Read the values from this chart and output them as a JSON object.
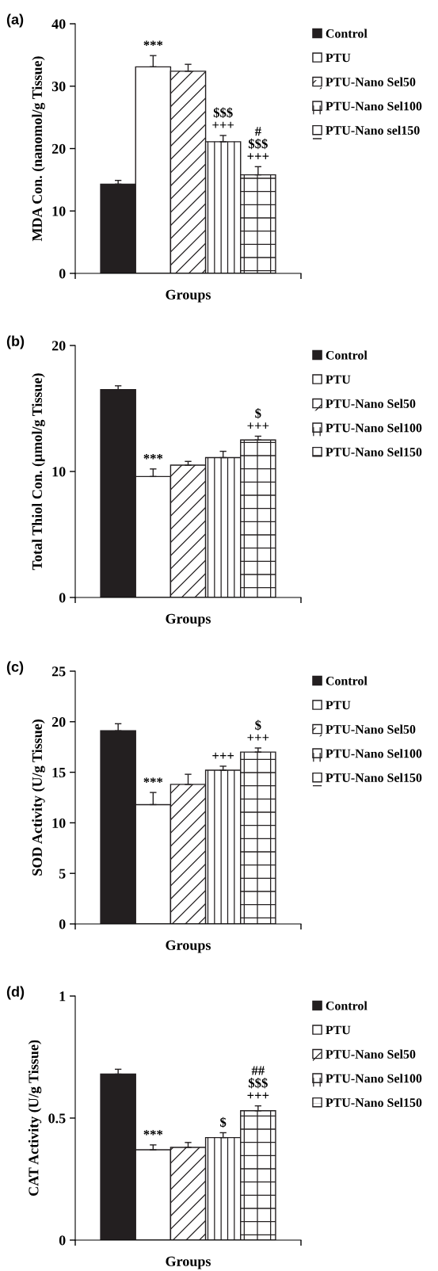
{
  "chart_data": [
    {
      "type": "bar",
      "title": "(a)",
      "xlabel": "Groups",
      "ylabel": "MDA Con. (nanomol/g Tissue)",
      "categories": [
        null
      ],
      "ylim": [
        0,
        40
      ],
      "yticks": [
        0,
        10,
        20,
        30,
        40
      ],
      "legend": "right",
      "series": [
        {
          "name": "Control",
          "color": "#231f20",
          "values": [
            14.3
          ],
          "errors": [
            [
              14.3,
              14.9
            ]
          ],
          "value_labels": [
            null
          ]
        },
        {
          "name": "PTU",
          "color": "#ffffff",
          "values": [
            33.1
          ],
          "errors": [
            [
              33.1,
              34.9
            ]
          ],
          "value_labels": [
            "***"
          ]
        },
        {
          "name": "PTU-Nano Sel50",
          "color": "#ffffff",
          "values": [
            32.4
          ],
          "errors": [
            [
              32.4,
              33.5
            ]
          ],
          "value_labels": [
            null
          ]
        },
        {
          "name": "PTU-Nano Sel100",
          "color": "#ffffff",
          "values": [
            21.1
          ],
          "errors": [
            [
              21.1,
              22.1
            ]
          ],
          "value_labels": [
            "$$$\n+++"
          ]
        },
        {
          "name": "PTU-Nano sel150",
          "color": "#ffffff",
          "values": [
            15.8
          ],
          "errors": [
            [
              15.8,
              17.1
            ]
          ],
          "value_labels": [
            "#\n$$$\n+++"
          ]
        }
      ]
    },
    {
      "type": "bar",
      "title": "(b)",
      "xlabel": "Groups",
      "ylabel": "Total Thiol Con. (µmol/g Tissue)",
      "categories": [
        null
      ],
      "ylim": [
        0,
        20
      ],
      "yticks": [
        0,
        10,
        20
      ],
      "legend": "right",
      "series": [
        {
          "name": "Control",
          "color": "#231f20",
          "values": [
            16.5
          ],
          "errors": [
            [
              16.5,
              16.8
            ]
          ],
          "value_labels": [
            null
          ]
        },
        {
          "name": "PTU",
          "color": "#ffffff",
          "values": [
            9.6
          ],
          "errors": [
            [
              9.6,
              10.2
            ]
          ],
          "value_labels": [
            "***"
          ]
        },
        {
          "name": "PTU-Nano Sel50",
          "color": "#ffffff",
          "values": [
            10.5
          ],
          "errors": [
            [
              10.5,
              10.8
            ]
          ],
          "value_labels": [
            null
          ]
        },
        {
          "name": "PTU-Nano Sel100",
          "color": "#ffffff",
          "values": [
            11.1
          ],
          "errors": [
            [
              11.1,
              11.6
            ]
          ],
          "value_labels": [
            null
          ]
        },
        {
          "name": "PTU-Nano Sel150",
          "color": "#ffffff",
          "values": [
            12.5
          ],
          "errors": [
            [
              12.5,
              12.8
            ]
          ],
          "value_labels": [
            "$\n+++"
          ]
        }
      ]
    },
    {
      "type": "bar",
      "title": "(c)",
      "xlabel": "Groups",
      "ylabel": "SOD Activity (U/g Tissue)",
      "categories": [
        null
      ],
      "ylim": [
        0,
        25
      ],
      "yticks": [
        0,
        5,
        10,
        15,
        20,
        25
      ],
      "legend": "right",
      "series": [
        {
          "name": "Control",
          "color": "#231f20",
          "values": [
            19.1
          ],
          "errors": [
            [
              19.1,
              19.8
            ]
          ],
          "value_labels": [
            null
          ]
        },
        {
          "name": "PTU",
          "color": "#ffffff",
          "values": [
            11.8
          ],
          "errors": [
            [
              11.8,
              13.0
            ]
          ],
          "value_labels": [
            "***"
          ]
        },
        {
          "name": "PTU-Nano Sel50",
          "color": "#ffffff",
          "values": [
            13.8
          ],
          "errors": [
            [
              13.8,
              14.8
            ]
          ],
          "value_labels": [
            null
          ]
        },
        {
          "name": "PTU-Nano Sel100",
          "color": "#ffffff",
          "values": [
            15.2
          ],
          "errors": [
            [
              15.2,
              15.6
            ]
          ],
          "value_labels": [
            "+++"
          ]
        },
        {
          "name": "PTU-Nano Sel150",
          "color": "#ffffff",
          "values": [
            17.0
          ],
          "errors": [
            [
              17.0,
              17.4
            ]
          ],
          "value_labels": [
            "$\n+++"
          ]
        }
      ]
    },
    {
      "type": "bar",
      "title": "(d)",
      "xlabel": "Groups",
      "ylabel": "CAT Activity (U/g Tissue)",
      "categories": [
        null
      ],
      "ylim": [
        0,
        1
      ],
      "yticks": [
        0,
        0.5,
        1
      ],
      "legend": "right",
      "series": [
        {
          "name": "Control",
          "color": "#231f20",
          "values": [
            0.68
          ],
          "errors": [
            [
              0.68,
              0.7
            ]
          ],
          "value_labels": [
            null
          ]
        },
        {
          "name": "PTU",
          "color": "#ffffff",
          "values": [
            0.37
          ],
          "errors": [
            [
              0.37,
              0.39
            ]
          ],
          "value_labels": [
            "***"
          ]
        },
        {
          "name": "PTU-Nano Sel50",
          "color": "#ffffff",
          "values": [
            0.38
          ],
          "errors": [
            [
              0.38,
              0.4
            ]
          ],
          "value_labels": [
            null
          ]
        },
        {
          "name": "PTU-Nano Sel100",
          "color": "#ffffff",
          "values": [
            0.42
          ],
          "errors": [
            [
              0.42,
              0.44
            ]
          ],
          "value_labels": [
            "$"
          ]
        },
        {
          "name": "PTU-Nano Sel150",
          "color": "#ffffff",
          "values": [
            0.53
          ],
          "errors": [
            [
              0.53,
              0.55
            ]
          ],
          "value_labels": [
            "##\n$$$\n+++"
          ]
        }
      ]
    }
  ]
}
